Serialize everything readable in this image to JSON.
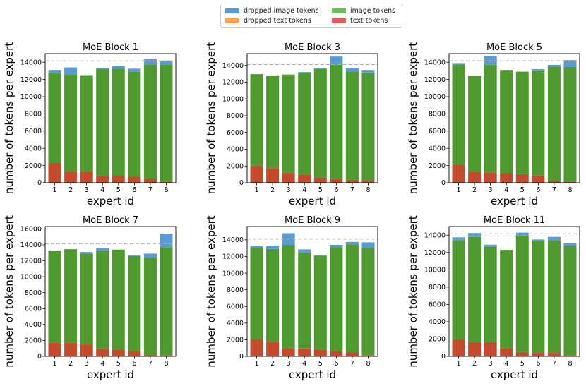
{
  "legend": {
    "items": [
      {
        "key": "dropped_image",
        "label": "dropped image tokens",
        "color": "#5b9bd5"
      },
      {
        "key": "image",
        "label": "image tokens",
        "color": "#6abf5b"
      },
      {
        "key": "dropped_text",
        "label": "dropped text tokens",
        "color": "#ffa04a"
      },
      {
        "key": "text",
        "label": "text tokens",
        "color": "#e05a5a"
      }
    ]
  },
  "colors": {
    "image": "#4f9a2e",
    "text": "#c44a2d",
    "dropped_image": "#5b9bd5",
    "capacity_line": "#aaaaaa"
  },
  "chart_data": [
    {
      "type": "bar",
      "title": "MoE Block 1",
      "xlabel": "expert id",
      "ylabel": "number of tokens per expert",
      "categories": [
        "1",
        "2",
        "3",
        "4",
        "5",
        "6",
        "7",
        "8"
      ],
      "ylim": [
        0,
        15000
      ],
      "yticks": [
        0,
        2000,
        4000,
        6000,
        8000,
        10000,
        12000,
        14000
      ],
      "capacity": 14150,
      "series": [
        {
          "name": "text tokens",
          "values": [
            2300,
            1300,
            1300,
            800,
            750,
            700,
            450,
            150
          ]
        },
        {
          "name": "image tokens",
          "values": [
            10400,
            11300,
            11200,
            12400,
            12500,
            12200,
            13300,
            13600
          ]
        },
        {
          "name": "dropped image tokens",
          "values": [
            400,
            800,
            0,
            150,
            300,
            350,
            650,
            450
          ]
        },
        {
          "name": "dropped text tokens",
          "values": [
            0,
            0,
            0,
            0,
            0,
            0,
            0,
            0
          ]
        }
      ]
    },
    {
      "type": "bar",
      "title": "MoE Block 3",
      "xlabel": "expert id",
      "ylabel": "number of tokens per expert",
      "categories": [
        "1",
        "2",
        "3",
        "4",
        "5",
        "6",
        "7",
        "8"
      ],
      "ylim": [
        0,
        15400
      ],
      "yticks": [
        0,
        2000,
        4000,
        6000,
        8000,
        10000,
        12000,
        14000
      ],
      "capacity": 14100,
      "series": [
        {
          "name": "text tokens",
          "values": [
            2050,
            1750,
            1200,
            1000,
            650,
            450,
            350,
            250
          ]
        },
        {
          "name": "image tokens",
          "values": [
            10900,
            11050,
            11700,
            12100,
            12900,
            13600,
            12900,
            12900
          ]
        },
        {
          "name": "dropped image tokens",
          "values": [
            0,
            0,
            0,
            100,
            150,
            1000,
            450,
            300
          ]
        },
        {
          "name": "dropped text tokens",
          "values": [
            0,
            0,
            0,
            0,
            0,
            0,
            0,
            0
          ]
        }
      ]
    },
    {
      "type": "bar",
      "title": "MoE Block 5",
      "xlabel": "expert id",
      "ylabel": "number of tokens per expert",
      "categories": [
        "1",
        "2",
        "3",
        "4",
        "5",
        "6",
        "7",
        "8"
      ],
      "ylim": [
        0,
        15000
      ],
      "yticks": [
        0,
        2000,
        4000,
        6000,
        8000,
        10000,
        12000,
        14000
      ],
      "capacity": 14150,
      "series": [
        {
          "name": "text tokens",
          "values": [
            2050,
            1300,
            1200,
            1150,
            1000,
            850,
            200,
            150
          ]
        },
        {
          "name": "image tokens",
          "values": [
            11700,
            11150,
            12500,
            11950,
            11900,
            12200,
            13300,
            13300
          ]
        },
        {
          "name": "dropped image tokens",
          "values": [
            150,
            0,
            1000,
            0,
            0,
            150,
            200,
            800
          ]
        },
        {
          "name": "dropped text tokens",
          "values": [
            0,
            0,
            0,
            0,
            0,
            0,
            0,
            0
          ]
        }
      ]
    },
    {
      "type": "bar",
      "title": "MoE Block 7",
      "xlabel": "expert id",
      "ylabel": "number of tokens per expert",
      "categories": [
        "1",
        "2",
        "3",
        "4",
        "5",
        "6",
        "7",
        "8"
      ],
      "ylim": [
        0,
        16300
      ],
      "yticks": [
        0,
        2000,
        4000,
        6000,
        8000,
        10000,
        12000,
        14000,
        16000
      ],
      "capacity": 14150,
      "series": [
        {
          "name": "text tokens",
          "values": [
            1750,
            1750,
            1500,
            950,
            850,
            700,
            200,
            100
          ]
        },
        {
          "name": "image tokens",
          "values": [
            11450,
            11700,
            11400,
            12350,
            12550,
            11900,
            12200,
            13600
          ]
        },
        {
          "name": "dropped image tokens",
          "values": [
            100,
            0,
            200,
            250,
            0,
            100,
            500,
            1700
          ]
        },
        {
          "name": "dropped text tokens",
          "values": [
            0,
            0,
            0,
            0,
            0,
            0,
            0,
            0
          ]
        }
      ]
    },
    {
      "type": "bar",
      "title": "MoE Block 9",
      "xlabel": "expert id",
      "ylabel": "number of tokens per expert",
      "categories": [
        "1",
        "2",
        "3",
        "4",
        "5",
        "6",
        "7",
        "8"
      ],
      "ylim": [
        0,
        15600
      ],
      "yticks": [
        0,
        2000,
        4000,
        6000,
        8000,
        10000,
        12000,
        14000
      ],
      "capacity": 14100,
      "series": [
        {
          "name": "text tokens",
          "values": [
            2050,
            1750,
            1000,
            950,
            800,
            600,
            500,
            100
          ]
        },
        {
          "name": "image tokens",
          "values": [
            10950,
            11150,
            12400,
            11500,
            11300,
            12500,
            12950,
            12950
          ]
        },
        {
          "name": "dropped image tokens",
          "values": [
            250,
            400,
            1400,
            400,
            50,
            300,
            300,
            650
          ]
        },
        {
          "name": "dropped text tokens",
          "values": [
            0,
            0,
            0,
            0,
            0,
            0,
            0,
            0
          ]
        }
      ]
    },
    {
      "type": "bar",
      "title": "MoE Block 11",
      "xlabel": "expert id",
      "ylabel": "number of tokens per expert",
      "categories": [
        "1",
        "2",
        "3",
        "4",
        "5",
        "6",
        "7",
        "8"
      ],
      "ylim": [
        0,
        15000
      ],
      "yticks": [
        0,
        2000,
        4000,
        6000,
        8000,
        10000,
        12000,
        14000
      ],
      "capacity": 14150,
      "series": [
        {
          "name": "text tokens",
          "values": [
            1950,
            1650,
            1650,
            950,
            500,
            400,
            400,
            150
          ]
        },
        {
          "name": "image tokens",
          "values": [
            11450,
            12150,
            11050,
            11350,
            13450,
            12900,
            13000,
            12600
          ]
        },
        {
          "name": "dropped image tokens",
          "values": [
            350,
            450,
            200,
            0,
            350,
            200,
            400,
            300
          ]
        },
        {
          "name": "dropped text tokens",
          "values": [
            0,
            0,
            0,
            0,
            0,
            0,
            0,
            0
          ]
        }
      ]
    }
  ]
}
